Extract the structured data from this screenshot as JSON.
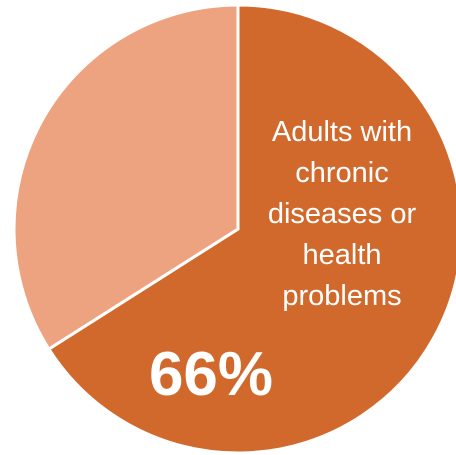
{
  "chart_data": {
    "type": "pie",
    "slices": [
      {
        "value": 66,
        "color": "#d2692c",
        "label_lines": [
          "Adults with",
          "chronic",
          "diseases or",
          "health",
          "problems"
        ],
        "value_label": "66%"
      },
      {
        "value": 34,
        "color": "#eda37f"
      }
    ],
    "start": "12 o'clock",
    "direction": "clockwise",
    "legend": "none"
  }
}
